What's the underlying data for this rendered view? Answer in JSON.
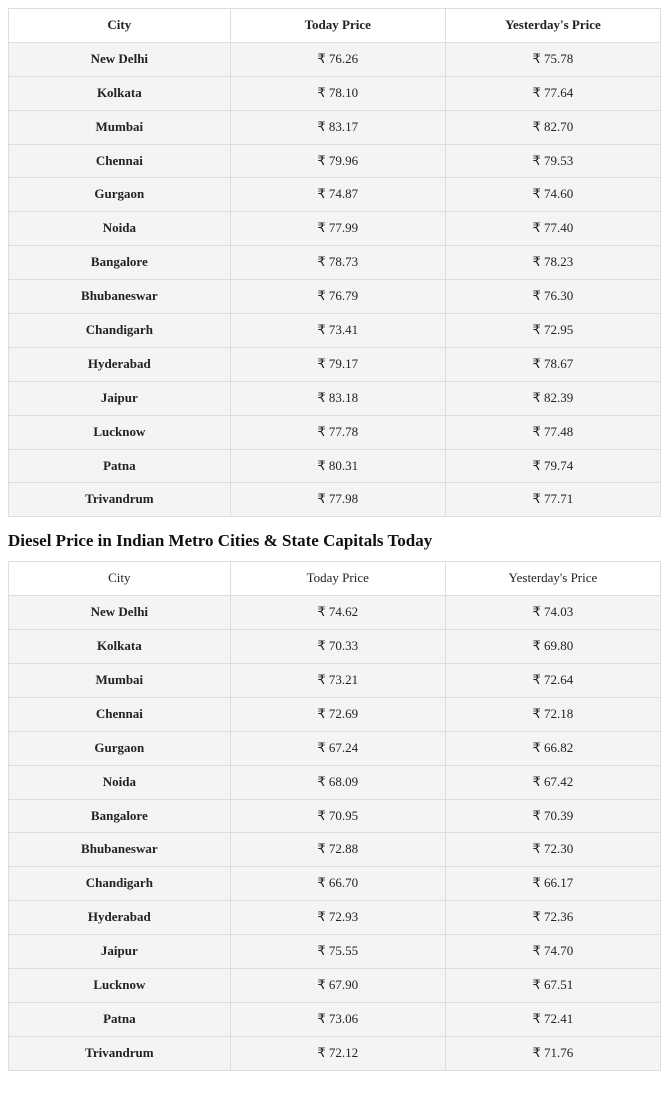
{
  "petrol_table": {
    "type": "table",
    "columns": [
      "City",
      "Today Price",
      "Yesterday's Price"
    ],
    "header_bold": true,
    "currency_symbol": "₹",
    "rows": [
      [
        "New Delhi",
        "76.26",
        "75.78"
      ],
      [
        "Kolkata",
        "78.10",
        "77.64"
      ],
      [
        "Mumbai",
        "83.17",
        "82.70"
      ],
      [
        "Chennai",
        "79.96",
        "79.53"
      ],
      [
        "Gurgaon",
        "74.87",
        "74.60"
      ],
      [
        "Noida",
        "77.99",
        "77.40"
      ],
      [
        "Bangalore",
        "78.73",
        "78.23"
      ],
      [
        "Bhubaneswar",
        "76.79",
        "76.30"
      ],
      [
        "Chandigarh",
        "73.41",
        "72.95"
      ],
      [
        "Hyderabad",
        "79.17",
        "78.67"
      ],
      [
        "Jaipur",
        "83.18",
        "82.39"
      ],
      [
        "Lucknow",
        "77.78",
        "77.48"
      ],
      [
        "Patna",
        "80.31",
        "79.74"
      ],
      [
        "Trivandrum",
        "77.98",
        "77.71"
      ]
    ],
    "border_color": "#dddddd",
    "stripe_color": "#f4f4f4",
    "background_color": "#ffffff",
    "font_size": 13,
    "col_widths_pct": [
      34,
      33,
      33
    ]
  },
  "diesel_heading": "Diesel Price in Indian Metro Cities & State Capitals Today",
  "diesel_table": {
    "type": "table",
    "columns": [
      "City",
      "Today Price",
      "Yesterday's Price"
    ],
    "header_bold": false,
    "currency_symbol": "₹",
    "rows": [
      [
        "New Delhi",
        "74.62",
        "74.03"
      ],
      [
        "Kolkata",
        "70.33",
        "69.80"
      ],
      [
        "Mumbai",
        "73.21",
        "72.64"
      ],
      [
        "Chennai",
        "72.69",
        "72.18"
      ],
      [
        "Gurgaon",
        "67.24",
        "66.82"
      ],
      [
        "Noida",
        "68.09",
        "67.42"
      ],
      [
        "Bangalore",
        "70.95",
        "70.39"
      ],
      [
        "Bhubaneswar",
        "72.88",
        "72.30"
      ],
      [
        "Chandigarh",
        "66.70",
        "66.17"
      ],
      [
        "Hyderabad",
        "72.93",
        "72.36"
      ],
      [
        "Jaipur",
        "75.55",
        "74.70"
      ],
      [
        "Lucknow",
        "67.90",
        "67.51"
      ],
      [
        "Patna",
        "73.06",
        "72.41"
      ],
      [
        "Trivandrum",
        "72.12",
        "71.76"
      ]
    ],
    "border_color": "#dddddd",
    "stripe_color": "#f4f4f4",
    "background_color": "#ffffff",
    "font_size": 13,
    "col_widths_pct": [
      34,
      33,
      33
    ]
  }
}
